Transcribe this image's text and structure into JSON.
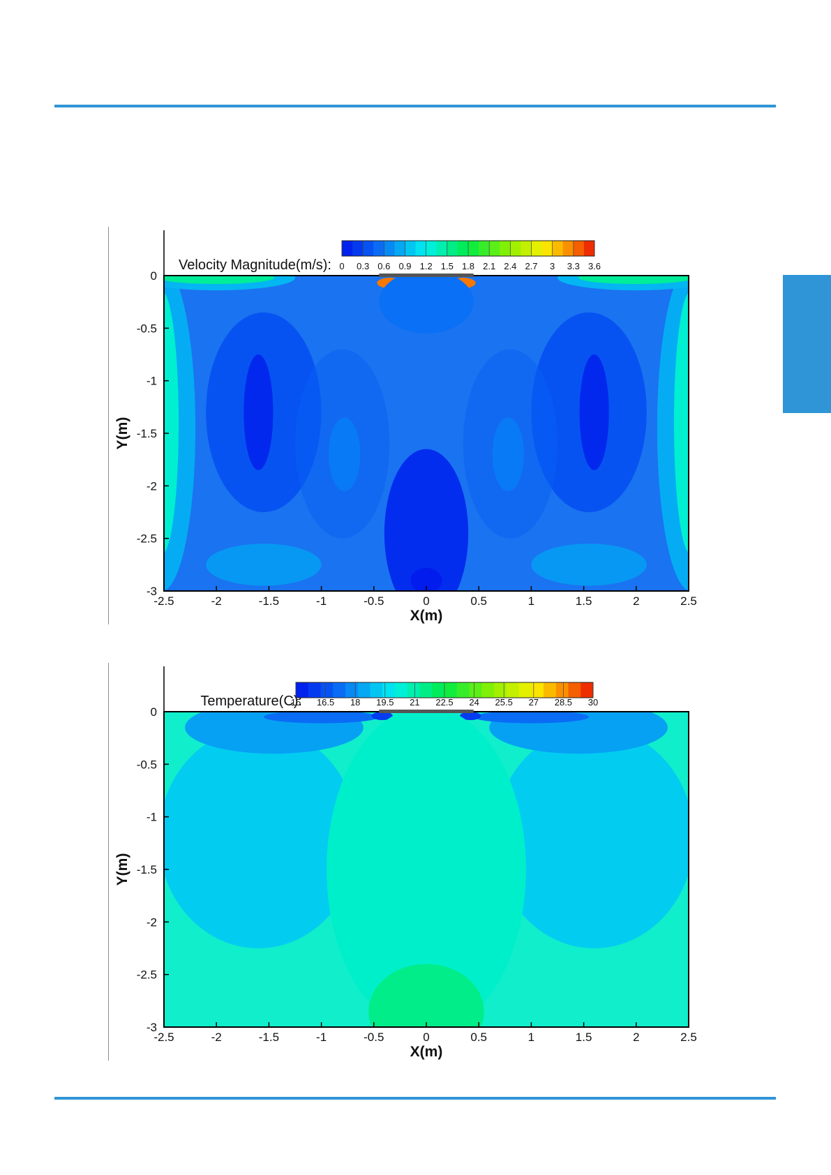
{
  "colors": {
    "accent": "#2f95d6"
  },
  "chart_data": [
    {
      "type": "heatmap",
      "title": "Velocity Magnitude(m/s):",
      "colorbar": {
        "range": [
          0,
          3.6
        ],
        "tick_labels": [
          "0",
          "0.3",
          "0.6",
          "0.9",
          "1.2",
          "1.5",
          "1.8",
          "2.1",
          "2.4",
          "2.7",
          "3",
          "3.3",
          "3.6"
        ],
        "colormap": "blue-cyan-green-yellow-red"
      },
      "xlabel": "X(m)",
      "ylabel": "Y(m)",
      "xlim": [
        -2.5,
        2.5
      ],
      "ylim": [
        -3,
        0
      ],
      "x_tick_labels": [
        "-2.5",
        "-2",
        "-1.5",
        "-1",
        "-0.5",
        "0",
        "0.5",
        "1",
        "1.5",
        "2",
        "2.5"
      ],
      "y_tick_labels": [
        "0",
        "-0.5",
        "-1",
        "-1.5",
        "-2",
        "-2.5",
        "-3"
      ],
      "field_regions": [
        {
          "region": "bulk room air",
          "value": 0.3
        },
        {
          "region": "low-velocity vortex cores near x=±1.6, y=-0.8..-1.9",
          "value": 0.1
        },
        {
          "region": "side wall jets near x=±2.5",
          "value": 1.3
        },
        {
          "region": "ceiling jets near x=±2.0, y=0",
          "value": 1.5
        },
        {
          "region": "supply outlets near x=±0.4, y=0",
          "value": 3.3
        },
        {
          "region": "central downflow x=0, y=-1.7..-3",
          "value": 0.15
        }
      ]
    },
    {
      "type": "heatmap",
      "title": "Temperature(C):",
      "colorbar": {
        "range": [
          15,
          30
        ],
        "tick_labels": [
          "15",
          "16.5",
          "18",
          "19.5",
          "21",
          "22.5",
          "24",
          "25.5",
          "27",
          "28.5",
          "30"
        ],
        "colormap": "blue-cyan-green-yellow-red"
      },
      "xlabel": "X(m)",
      "ylabel": "Y(m)",
      "xlim": [
        -2.5,
        2.5
      ],
      "ylim": [
        -3,
        0
      ],
      "x_tick_labels": [
        "-2.5",
        "-2",
        "-1.5",
        "-1",
        "-0.5",
        "0",
        "0.5",
        "1",
        "1.5",
        "2",
        "2.5"
      ],
      "y_tick_labels": [
        "0",
        "-0.5",
        "-1",
        "-1.5",
        "-2",
        "-2.5",
        "-3"
      ],
      "field_regions": [
        {
          "region": "side regions",
          "value": 19.2
        },
        {
          "region": "central plume",
          "value": 20.5
        },
        {
          "region": "near floor at x=0",
          "value": 21.5
        },
        {
          "region": "ceiling cold-air jets near x=±1.5, y=0",
          "value": 18.0
        },
        {
          "region": "supply outlets near x=±0.4, y=0",
          "value": 16.0
        }
      ]
    }
  ]
}
